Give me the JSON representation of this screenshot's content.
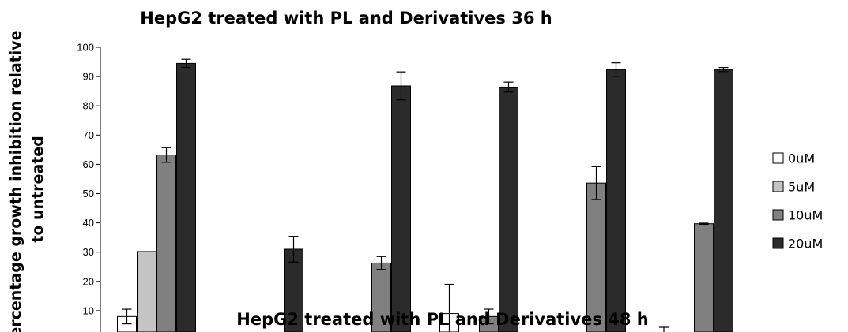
{
  "chart_data": [
    {
      "type": "bar",
      "title": "HepG2 treated with PL and Derivatives 36 h",
      "ylabel": "Percentage growth inhibition relative to untreated",
      "ylabel_lines": [
        "Percentage growth inhibition relative",
        "to untreated"
      ],
      "xlabel": "",
      "ylim": [
        0,
        100
      ],
      "yticks": [
        10,
        20,
        30,
        40,
        50,
        60,
        70,
        80,
        90,
        100
      ],
      "categories": [
        "",
        "",
        "",
        "",
        "",
        ""
      ],
      "series": [
        {
          "name": "0uM",
          "color": "#ffffff",
          "values": [
            8,
            null,
            null,
            9,
            null,
            null
          ],
          "errors": [
            2.5,
            null,
            null,
            10,
            null,
            null
          ]
        },
        {
          "name": "5uM",
          "color": "#c4c4c4",
          "values": [
            30.2,
            null,
            null,
            null,
            null,
            null
          ],
          "errors": [
            null,
            null,
            null,
            null,
            null,
            null
          ]
        },
        {
          "name": "10uM",
          "color": "#808080",
          "values": [
            63.2,
            null,
            26.3,
            8,
            53.6,
            39.7
          ],
          "errors": [
            2.5,
            null,
            2.2,
            2.5,
            5.6,
            0.2
          ]
        },
        {
          "name": "20uM",
          "color": "#2b2b2b",
          "values": [
            94.5,
            31,
            86.8,
            86.4,
            92.4,
            92.4
          ],
          "errors": [
            1.4,
            4.4,
            4.8,
            1.7,
            2.3,
            0.7
          ]
        }
      ],
      "legend": {
        "position": "right"
      },
      "grid": false
    },
    {
      "type": "bar",
      "title": "HepG2 treated with PL and Derivatives 48 h"
    }
  ]
}
